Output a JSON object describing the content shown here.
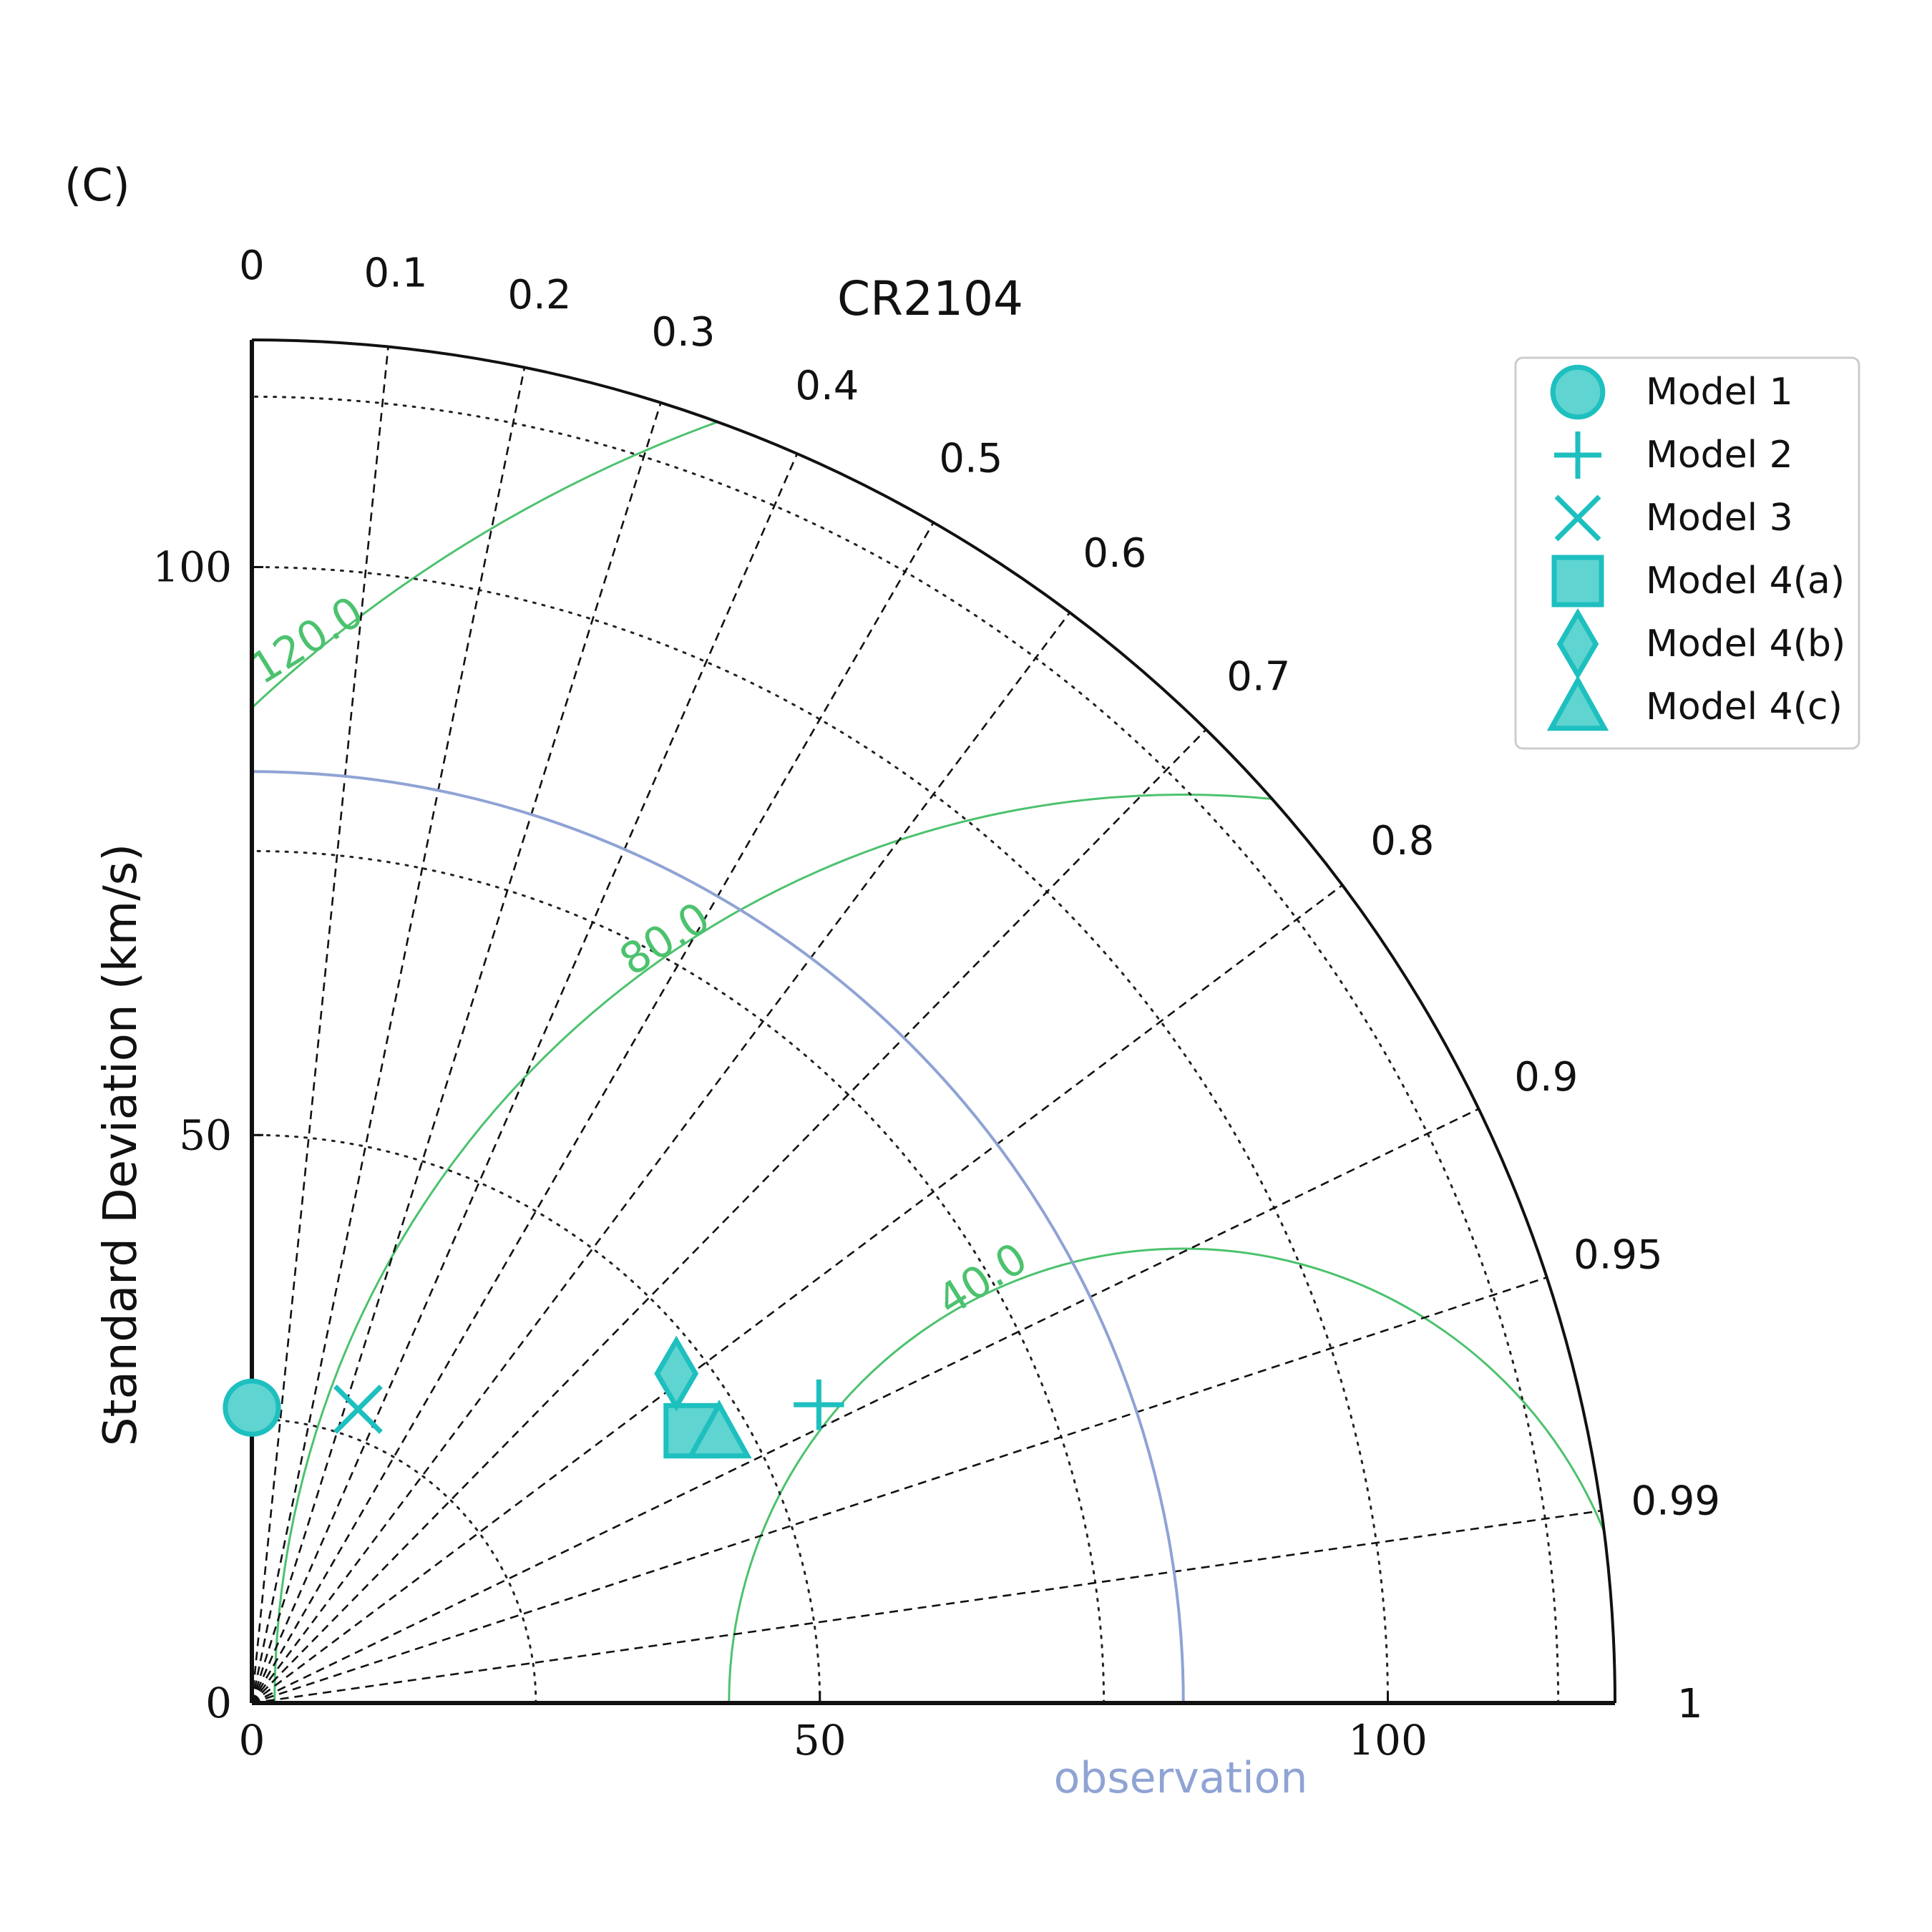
{
  "chart_data": {
    "type": "taylor_diagram",
    "panel_label": "(C)",
    "title": "CR2104",
    "ylabel": "Standard Deviation (km/s)",
    "obs_label": "observation",
    "std_max": 120,
    "std_ticks": [
      0,
      50,
      100
    ],
    "std_tick_labels": [
      "0",
      "50",
      "100"
    ],
    "std_grid": [
      25,
      50,
      75,
      100,
      115
    ],
    "correlation_ticks": [
      0,
      0.1,
      0.2,
      0.3,
      0.4,
      0.5,
      0.6,
      0.7,
      0.8,
      0.9,
      0.95,
      0.99,
      1
    ],
    "correlation_tick_labels": [
      "0",
      "0.1",
      "0.2",
      "0.3",
      "0.4",
      "0.5",
      "0.6",
      "0.7",
      "0.8",
      "0.9",
      "0.95",
      "0.99",
      "1"
    ],
    "reference_std": 82,
    "rms_levels": [
      40,
      80,
      120
    ],
    "rms_labels": [
      "40.0",
      "80.0",
      "120.0"
    ],
    "colors": {
      "marker": "#1ebfbf",
      "marker_fill": "#5fd4d0",
      "rms": "#4cc26e",
      "reference": "#8fa3d4",
      "axis": "#111111"
    },
    "series": [
      {
        "name": "Model 1",
        "marker": "circle",
        "std": 26.0,
        "correlation": 0.0
      },
      {
        "name": "Model 2",
        "marker": "plus",
        "std": 56.4,
        "correlation": 0.885
      },
      {
        "name": "Model 3",
        "marker": "x",
        "std": 27.5,
        "correlation": 0.34
      },
      {
        "name": "Model 4(a)",
        "marker": "square",
        "std": 45.5,
        "correlation": 0.85
      },
      {
        "name": "Model 4(b)",
        "marker": "diamond",
        "std": 47.3,
        "correlation": 0.79
      },
      {
        "name": "Model 4(c)",
        "marker": "triangle",
        "std": 47.5,
        "correlation": 0.866
      }
    ],
    "legend_position": "top-right"
  }
}
